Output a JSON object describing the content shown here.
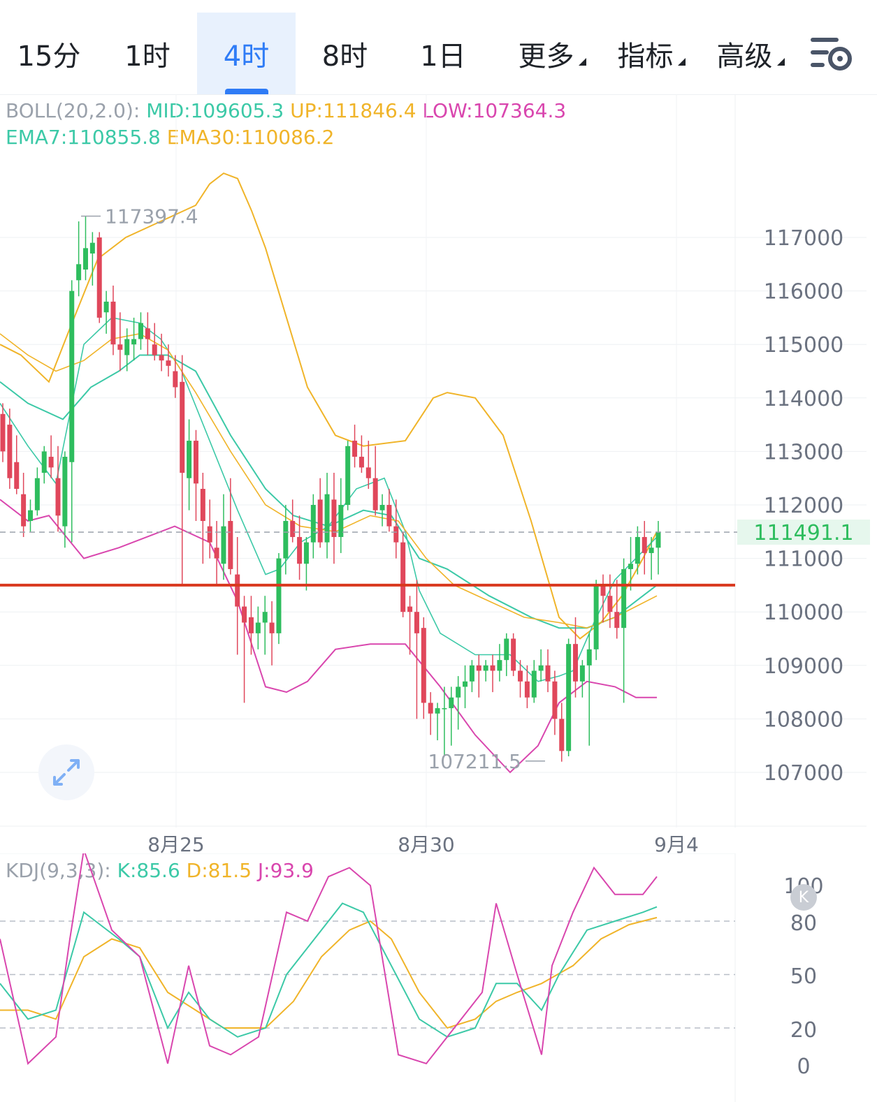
{
  "tabs": [
    {
      "label": "15分",
      "active": false,
      "dropdown": false
    },
    {
      "label": "1时",
      "active": false,
      "dropdown": false
    },
    {
      "label": "4时",
      "active": true,
      "dropdown": false
    },
    {
      "label": "8时",
      "active": false,
      "dropdown": false
    },
    {
      "label": "1日",
      "active": false,
      "dropdown": false
    },
    {
      "label": "更多",
      "active": false,
      "dropdown": true
    },
    {
      "label": "指标",
      "active": false,
      "dropdown": true
    },
    {
      "label": "高级",
      "active": false,
      "dropdown": true
    }
  ],
  "settings_icon": "chart-settings-icon",
  "colors": {
    "up": "#2ebd5e",
    "down": "#e0475b",
    "mid": "#3cc9a7",
    "upper": "#f0b429",
    "lower": "#d946ae",
    "line": "#d9381e",
    "ema7": "#3cc9a7",
    "ema30": "#f0b429",
    "accent": "#2f7cf6"
  },
  "boll_legend": {
    "name": "BOLL(20,2.0):",
    "mid": "MID:109605.3",
    "up": "UP:111846.4",
    "low": "LOW:107364.3"
  },
  "ema_legend": {
    "ema7": "EMA7:110855.8",
    "ema30": "EMA30:110086.2"
  },
  "kdj_legend": {
    "name": "KDJ(9,3,3):",
    "k": "K:85.6",
    "d": "D:81.5",
    "j": "J:93.9"
  },
  "x_labels": [
    "8月25",
    "8月30",
    "9月4"
  ],
  "k_badge": "K",
  "expand_icon": "expand-arrows-icon",
  "chart_data": {
    "type": "candlestick",
    "price_axis": {
      "ticks": [
        117000,
        116000,
        115000,
        114000,
        113000,
        112000,
        111000,
        110000,
        109000,
        108000,
        107000
      ],
      "range": [
        106000,
        118200
      ]
    },
    "current_price": {
      "value": 111491.1,
      "label": "111491.1"
    },
    "support_line": 110500,
    "high_marker": {
      "value": 117397.4,
      "label": "117397.4"
    },
    "low_marker": {
      "value": 107211.5,
      "label": "107211.5"
    },
    "candles": [
      [
        113700,
        113900,
        112800,
        113000
      ],
      [
        113500,
        113800,
        112300,
        112500
      ],
      [
        112800,
        113300,
        112200,
        112300
      ],
      [
        112200,
        112600,
        111400,
        111600
      ],
      [
        111700,
        112100,
        111500,
        111900
      ],
      [
        111900,
        112700,
        111800,
        112500
      ],
      [
        112600,
        113100,
        112400,
        113000
      ],
      [
        112900,
        113300,
        112500,
        112700
      ],
      [
        112500,
        113100,
        111500,
        111800
      ],
      [
        111600,
        113000,
        111200,
        112900
      ],
      [
        112800,
        116200,
        111300,
        116000
      ],
      [
        116200,
        117300,
        115900,
        116500
      ],
      [
        116400,
        117400,
        116200,
        116800
      ],
      [
        116700,
        117100,
        116100,
        116900
      ],
      [
        117000,
        117100,
        115400,
        115500
      ],
      [
        115600,
        116000,
        115200,
        115800
      ],
      [
        115800,
        116100,
        114800,
        115000
      ],
      [
        115000,
        115600,
        114500,
        114900
      ],
      [
        114800,
        115300,
        114500,
        115100
      ],
      [
        115000,
        115500,
        114700,
        115100
      ],
      [
        115100,
        115600,
        114900,
        115400
      ],
      [
        115300,
        115600,
        114800,
        115100
      ],
      [
        115000,
        115400,
        114700,
        114800
      ],
      [
        114800,
        115200,
        114500,
        114700
      ],
      [
        114700,
        115000,
        114400,
        114600
      ],
      [
        114500,
        114800,
        114000,
        114200
      ],
      [
        114300,
        114800,
        110500,
        112600
      ],
      [
        112500,
        113600,
        111900,
        113200
      ],
      [
        113200,
        113400,
        111700,
        112400
      ],
      [
        112300,
        112600,
        110900,
        111700
      ],
      [
        111600,
        112100,
        111000,
        111300
      ],
      [
        111200,
        111700,
        110500,
        111000
      ],
      [
        110900,
        112200,
        110600,
        111600
      ],
      [
        111700,
        112500,
        110700,
        110800
      ],
      [
        110700,
        111400,
        109200,
        110100
      ],
      [
        110100,
        110300,
        108300,
        109800
      ],
      [
        109900,
        110300,
        109200,
        109600
      ],
      [
        109600,
        110100,
        109300,
        109800
      ],
      [
        109800,
        110300,
        109200,
        110000
      ],
      [
        109800,
        110200,
        109000,
        109600
      ],
      [
        109600,
        111100,
        109400,
        111000
      ],
      [
        111000,
        112000,
        110700,
        111700
      ],
      [
        111700,
        112100,
        111300,
        111400
      ],
      [
        111400,
        111800,
        110600,
        110900
      ],
      [
        110900,
        111400,
        110400,
        111300
      ],
      [
        111300,
        112200,
        111000,
        112000
      ],
      [
        112100,
        112500,
        111200,
        111300
      ],
      [
        111300,
        112600,
        111000,
        112200
      ],
      [
        112100,
        112600,
        110900,
        111400
      ],
      [
        111400,
        112500,
        111100,
        112000
      ],
      [
        112000,
        113200,
        111900,
        113100
      ],
      [
        113200,
        113500,
        112700,
        112900
      ],
      [
        112900,
        113300,
        112600,
        112700
      ],
      [
        112700,
        113200,
        112300,
        112500
      ],
      [
        112500,
        113100,
        111800,
        111900
      ],
      [
        111900,
        112200,
        111600,
        112000
      ],
      [
        112000,
        112300,
        111500,
        111600
      ],
      [
        111600,
        112100,
        111000,
        111300
      ],
      [
        111300,
        111500,
        109900,
        110000
      ],
      [
        110100,
        110300,
        109200,
        110000
      ],
      [
        110000,
        110600,
        108000,
        109600
      ],
      [
        109700,
        109900,
        108000,
        108300
      ],
      [
        108300,
        108500,
        107700,
        108100
      ],
      [
        108100,
        108300,
        107600,
        108200
      ],
      [
        108200,
        108600,
        107300,
        108200
      ],
      [
        108200,
        108600,
        107500,
        108400
      ],
      [
        108400,
        108800,
        107800,
        108600
      ],
      [
        108600,
        109000,
        108200,
        108700
      ],
      [
        108700,
        109100,
        108500,
        109000
      ],
      [
        109000,
        109200,
        108400,
        108900
      ],
      [
        108900,
        109100,
        108700,
        109000
      ],
      [
        109000,
        109200,
        108500,
        108900
      ],
      [
        108900,
        109400,
        108700,
        109100
      ],
      [
        109100,
        109600,
        108800,
        109500
      ],
      [
        109500,
        109600,
        108800,
        108900
      ],
      [
        108900,
        109100,
        108400,
        108700
      ],
      [
        108700,
        109000,
        108200,
        108400
      ],
      [
        108400,
        109100,
        108300,
        108900
      ],
      [
        108900,
        109300,
        108700,
        109000
      ],
      [
        109000,
        109300,
        108500,
        108700
      ],
      [
        108700,
        108900,
        107700,
        108000
      ],
      [
        108000,
        108300,
        107200,
        107400
      ],
      [
        107400,
        109500,
        107300,
        109400
      ],
      [
        109400,
        109900,
        108400,
        108700
      ],
      [
        108700,
        109100,
        108400,
        109000
      ],
      [
        109000,
        109600,
        107500,
        109300
      ],
      [
        109300,
        110600,
        109100,
        110500
      ],
      [
        110500,
        110700,
        109800,
        110300
      ],
      [
        110300,
        110700,
        109700,
        110000
      ],
      [
        110000,
        110600,
        109500,
        109700
      ],
      [
        109700,
        111000,
        108300,
        110800
      ],
      [
        110800,
        111400,
        110400,
        110900
      ],
      [
        110900,
        111600,
        110700,
        111400
      ],
      [
        111400,
        111700,
        110700,
        111100
      ],
      [
        111100,
        111400,
        110600,
        111200
      ],
      [
        111200,
        111700,
        110700,
        111500
      ]
    ],
    "boll_upper": [
      [
        0,
        115000
      ],
      [
        30,
        114800
      ],
      [
        70,
        114300
      ],
      [
        100,
        115300
      ],
      [
        140,
        116600
      ],
      [
        180,
        117000
      ],
      [
        230,
        117300
      ],
      [
        280,
        117600
      ],
      [
        300,
        118000
      ],
      [
        320,
        118200
      ],
      [
        340,
        118100
      ],
      [
        360,
        117500
      ],
      [
        380,
        116800
      ],
      [
        410,
        115500
      ],
      [
        440,
        114200
      ],
      [
        480,
        113300
      ],
      [
        520,
        113100
      ],
      [
        580,
        113200
      ],
      [
        620,
        114000
      ],
      [
        640,
        114100
      ],
      [
        680,
        114000
      ],
      [
        720,
        113300
      ],
      [
        760,
        111700
      ],
      [
        800,
        109900
      ],
      [
        830,
        109500
      ],
      [
        860,
        109800
      ],
      [
        890,
        110300
      ],
      [
        920,
        111000
      ],
      [
        940,
        111500
      ]
    ],
    "boll_mid": [
      [
        0,
        114300
      ],
      [
        40,
        113900
      ],
      [
        90,
        113600
      ],
      [
        130,
        114200
      ],
      [
        170,
        114500
      ],
      [
        200,
        114800
      ],
      [
        240,
        114800
      ],
      [
        280,
        114500
      ],
      [
        330,
        113300
      ],
      [
        380,
        112300
      ],
      [
        420,
        111800
      ],
      [
        470,
        111600
      ],
      [
        520,
        111900
      ],
      [
        560,
        111800
      ],
      [
        600,
        111000
      ],
      [
        640,
        110800
      ],
      [
        700,
        110300
      ],
      [
        760,
        109900
      ],
      [
        800,
        109700
      ],
      [
        840,
        109700
      ],
      [
        880,
        109900
      ],
      [
        920,
        110300
      ],
      [
        940,
        110500
      ]
    ],
    "boll_lower": [
      [
        0,
        112100
      ],
      [
        40,
        111700
      ],
      [
        70,
        111800
      ],
      [
        120,
        111000
      ],
      [
        170,
        111200
      ],
      [
        250,
        111600
      ],
      [
        300,
        111300
      ],
      [
        340,
        110200
      ],
      [
        380,
        108600
      ],
      [
        410,
        108500
      ],
      [
        440,
        108700
      ],
      [
        480,
        109300
      ],
      [
        530,
        109400
      ],
      [
        580,
        109400
      ],
      [
        630,
        108600
      ],
      [
        680,
        107700
      ],
      [
        730,
        107000
      ],
      [
        770,
        107500
      ],
      [
        800,
        108300
      ],
      [
        840,
        108700
      ],
      [
        880,
        108600
      ],
      [
        910,
        108400
      ],
      [
        940,
        108400
      ]
    ],
    "ema7": [
      [
        0,
        113900
      ],
      [
        40,
        113100
      ],
      [
        80,
        112400
      ],
      [
        100,
        113700
      ],
      [
        120,
        115000
      ],
      [
        160,
        115500
      ],
      [
        200,
        115400
      ],
      [
        230,
        115100
      ],
      [
        260,
        114500
      ],
      [
        300,
        113200
      ],
      [
        340,
        111900
      ],
      [
        380,
        110700
      ],
      [
        400,
        110800
      ],
      [
        430,
        111300
      ],
      [
        470,
        111600
      ],
      [
        510,
        112300
      ],
      [
        550,
        112500
      ],
      [
        580,
        111500
      ],
      [
        600,
        110400
      ],
      [
        630,
        109600
      ],
      [
        680,
        109200
      ],
      [
        730,
        109200
      ],
      [
        770,
        108700
      ],
      [
        800,
        108800
      ],
      [
        820,
        108900
      ],
      [
        850,
        109800
      ],
      [
        880,
        110600
      ],
      [
        910,
        111000
      ],
      [
        940,
        111400
      ]
    ],
    "ema30": [
      [
        0,
        115200
      ],
      [
        40,
        114800
      ],
      [
        80,
        114500
      ],
      [
        120,
        114700
      ],
      [
        160,
        115100
      ],
      [
        200,
        115200
      ],
      [
        240,
        114900
      ],
      [
        280,
        114100
      ],
      [
        330,
        113000
      ],
      [
        380,
        112000
      ],
      [
        430,
        111600
      ],
      [
        480,
        111500
      ],
      [
        530,
        111800
      ],
      [
        570,
        111700
      ],
      [
        610,
        111000
      ],
      [
        650,
        110500
      ],
      [
        700,
        110200
      ],
      [
        750,
        109900
      ],
      [
        800,
        109800
      ],
      [
        840,
        109700
      ],
      [
        880,
        109900
      ],
      [
        910,
        110100
      ],
      [
        940,
        110300
      ]
    ],
    "kdj_axis": {
      "ticks": [
        100,
        80,
        50,
        20,
        0
      ]
    },
    "kdj_k": [
      [
        0,
        45
      ],
      [
        40,
        25
      ],
      [
        80,
        30
      ],
      [
        120,
        85
      ],
      [
        170,
        70
      ],
      [
        200,
        60
      ],
      [
        240,
        20
      ],
      [
        270,
        40
      ],
      [
        300,
        25
      ],
      [
        340,
        15
      ],
      [
        380,
        20
      ],
      [
        410,
        50
      ],
      [
        450,
        70
      ],
      [
        490,
        90
      ],
      [
        520,
        85
      ],
      [
        560,
        55
      ],
      [
        600,
        25
      ],
      [
        640,
        15
      ],
      [
        680,
        20
      ],
      [
        710,
        45
      ],
      [
        740,
        45
      ],
      [
        775,
        30
      ],
      [
        800,
        50
      ],
      [
        840,
        75
      ],
      [
        880,
        80
      ],
      [
        920,
        85
      ],
      [
        940,
        88
      ]
    ],
    "kdj_d": [
      [
        0,
        30
      ],
      [
        40,
        30
      ],
      [
        80,
        25
      ],
      [
        120,
        60
      ],
      [
        160,
        70
      ],
      [
        200,
        65
      ],
      [
        240,
        40
      ],
      [
        280,
        30
      ],
      [
        320,
        20
      ],
      [
        380,
        20
      ],
      [
        420,
        35
      ],
      [
        460,
        60
      ],
      [
        500,
        75
      ],
      [
        530,
        80
      ],
      [
        560,
        70
      ],
      [
        600,
        40
      ],
      [
        640,
        20
      ],
      [
        680,
        25
      ],
      [
        710,
        35
      ],
      [
        740,
        40
      ],
      [
        775,
        45
      ],
      [
        820,
        55
      ],
      [
        860,
        70
      ],
      [
        900,
        78
      ],
      [
        940,
        82
      ]
    ],
    "kdj_j": [
      [
        0,
        70
      ],
      [
        40,
        0
      ],
      [
        80,
        15
      ],
      [
        100,
        70
      ],
      [
        120,
        120
      ],
      [
        160,
        75
      ],
      [
        200,
        60
      ],
      [
        240,
        0
      ],
      [
        270,
        55
      ],
      [
        300,
        10
      ],
      [
        330,
        5
      ],
      [
        370,
        15
      ],
      [
        410,
        85
      ],
      [
        440,
        80
      ],
      [
        470,
        105
      ],
      [
        500,
        110
      ],
      [
        530,
        100
      ],
      [
        570,
        5
      ],
      [
        610,
        0
      ],
      [
        650,
        20
      ],
      [
        690,
        40
      ],
      [
        710,
        90
      ],
      [
        740,
        50
      ],
      [
        775,
        5
      ],
      [
        790,
        55
      ],
      [
        820,
        85
      ],
      [
        850,
        110
      ],
      [
        880,
        95
      ],
      [
        920,
        95
      ],
      [
        940,
        105
      ]
    ]
  }
}
